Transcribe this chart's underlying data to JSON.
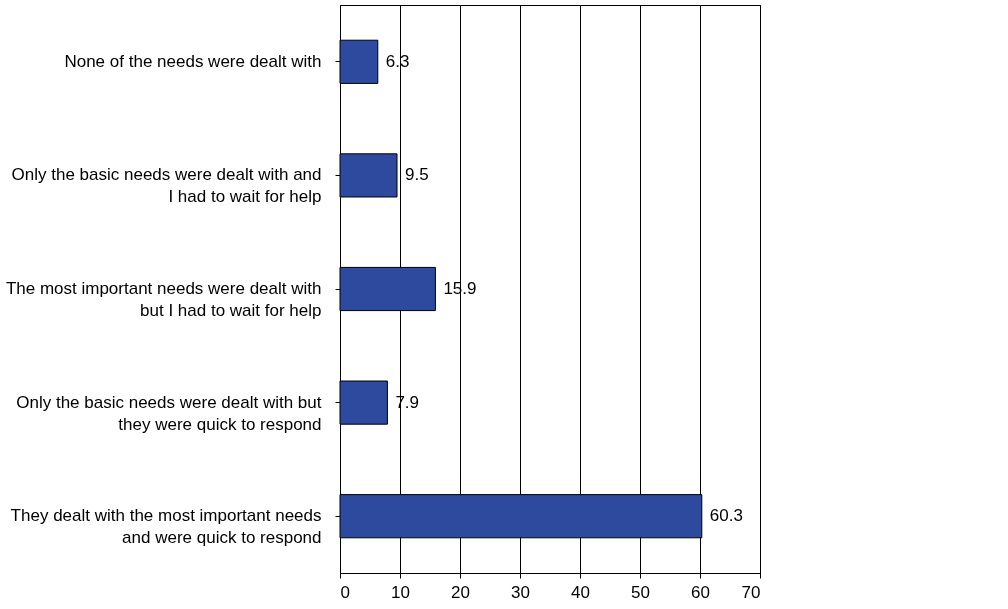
{
  "chart_data": {
    "type": "bar",
    "orientation": "horizontal",
    "categories": [
      "None of the needs were dealt with",
      "Only the basic needs were dealt with and I had to wait for help",
      "The most important needs were dealt with but I had to wait for help",
      "Only the basic needs were dealt with but they were quick to respond",
      "They dealt with the most important needs and were quick to respond"
    ],
    "values": [
      6.3,
      9.5,
      15.9,
      7.9,
      60.3
    ],
    "color": "#2e4a9e",
    "xlim": [
      0,
      70
    ],
    "xticks": [
      0,
      10,
      20,
      30,
      40,
      50,
      60,
      70
    ],
    "grid": "x",
    "data_labels": true
  }
}
